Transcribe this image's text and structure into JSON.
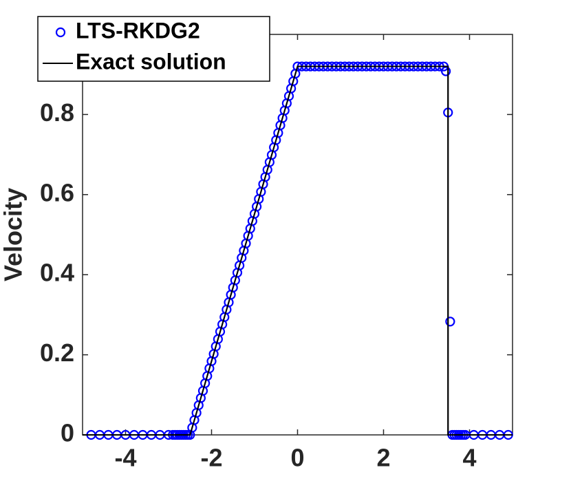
{
  "chart_data": {
    "type": "scatter-line",
    "ylabel": "Velocity",
    "xlim": [
      -5,
      5
    ],
    "ylim": [
      0,
      1
    ],
    "xticks": [
      -4,
      -2,
      0,
      2,
      4
    ],
    "yticks": [
      0,
      0.2,
      0.4,
      0.6,
      0.8
    ],
    "legend": "upper left",
    "series": [
      {
        "name": "LTS-RKDG2",
        "kind": "scatter",
        "color": "#0000ff",
        "x": [
          -4.8,
          -4.6,
          -4.4,
          -4.2,
          -4,
          -3.8,
          -3.6,
          -3.4,
          -3.2,
          -3,
          -2.9,
          -2.85,
          -2.8,
          -2.75,
          -2.7,
          -2.65,
          -2.6,
          -2.55,
          -2.5,
          -2.45,
          -2.4,
          -2.35,
          -2.3,
          -2.25,
          -2.2,
          -2.15,
          -2.1,
          -2.05,
          -2,
          -1.95,
          -1.9,
          -1.85,
          -1.8,
          -1.75,
          -1.7,
          -1.65,
          -1.6,
          -1.55,
          -1.5,
          -1.45,
          -1.4,
          -1.35,
          -1.3,
          -1.25,
          -1.2,
          -1.15,
          -1.1,
          -1.05,
          -1,
          -0.95,
          -0.9,
          -0.85,
          -0.8,
          -0.75,
          -0.7,
          -0.65,
          -0.6,
          -0.55,
          -0.5,
          -0.45,
          -0.4,
          -0.35,
          -0.3,
          -0.25,
          -0.2,
          -0.15,
          -0.1,
          -0.05,
          0,
          0.1,
          0.2,
          0.3,
          0.4,
          0.5,
          0.6,
          0.7,
          0.8,
          0.9,
          1,
          1.1,
          1.2,
          1.3,
          1.4,
          1.5,
          1.6,
          1.7,
          1.8,
          1.9,
          2,
          2.1,
          2.2,
          2.3,
          2.4,
          2.5,
          2.6,
          2.7,
          2.8,
          2.9,
          3,
          3.1,
          3.2,
          3.3,
          3.4,
          3.45,
          3.5,
          3.55,
          3.6,
          3.65,
          3.7,
          3.75,
          3.8,
          3.85,
          3.9,
          4.1,
          4.3,
          4.5,
          4.7,
          4.9
        ],
        "values": [
          0,
          0,
          0,
          0,
          0,
          0,
          0,
          0,
          0,
          0,
          0,
          0,
          0,
          0,
          0,
          0,
          0,
          0,
          0,
          0.018,
          0.037,
          0.055,
          0.074,
          0.092,
          0.11,
          0.129,
          0.147,
          0.166,
          0.184,
          0.202,
          0.221,
          0.239,
          0.258,
          0.276,
          0.294,
          0.313,
          0.331,
          0.35,
          0.368,
          0.386,
          0.405,
          0.423,
          0.442,
          0.46,
          0.478,
          0.497,
          0.515,
          0.534,
          0.552,
          0.57,
          0.589,
          0.607,
          0.626,
          0.644,
          0.662,
          0.681,
          0.699,
          0.718,
          0.736,
          0.754,
          0.773,
          0.791,
          0.81,
          0.828,
          0.846,
          0.865,
          0.883,
          0.902,
          0.92,
          0.92,
          0.92,
          0.92,
          0.92,
          0.92,
          0.92,
          0.92,
          0.92,
          0.92,
          0.92,
          0.92,
          0.92,
          0.92,
          0.92,
          0.92,
          0.92,
          0.92,
          0.92,
          0.92,
          0.92,
          0.92,
          0.92,
          0.92,
          0.92,
          0.92,
          0.92,
          0.92,
          0.92,
          0.92,
          0.92,
          0.92,
          0.92,
          0.92,
          0.92,
          0.908,
          0.805,
          0.283,
          0,
          0,
          0,
          0,
          0,
          0,
          0,
          0,
          0,
          0,
          0,
          0
        ]
      },
      {
        "name": "Exact solution",
        "kind": "line",
        "color": "#000000",
        "x": [
          -5,
          -2.5,
          0,
          3.5,
          3.5,
          5
        ],
        "values": [
          0,
          0,
          0.92,
          0.92,
          0,
          0
        ]
      }
    ]
  }
}
